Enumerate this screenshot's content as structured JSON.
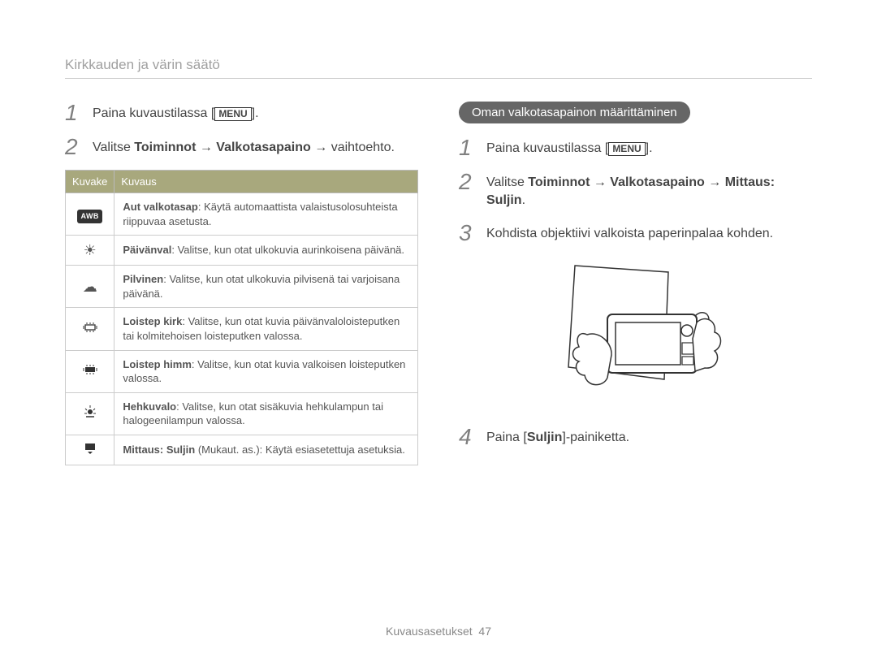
{
  "header": "Kirkkauden ja värin säätö",
  "left": {
    "step1_prefix": "Paina kuvaustilassa [",
    "menu_label": "MENU",
    "step1_suffix": "].",
    "step2_pre": "Valitse ",
    "step2_b1": "Toiminnot",
    "step2_arrow": " → ",
    "step2_b2": "Valkotasapaino",
    "step2_suffix": " → vaihtoehto.",
    "table": {
      "col_icon": "Kuvake",
      "col_desc": "Kuvaus",
      "rows": [
        {
          "icon_html": "<span class='awb-box'>AWB</span>",
          "title": "Aut valkotasap",
          "body": ": Käytä automaattista valaistusolosuhteista riippuvaa asetusta."
        },
        {
          "icon_html": "☀",
          "title": "Päivänval",
          "body": ": Valitse, kun otat ulkokuvia aurinkoisena päivänä."
        },
        {
          "icon_html": "☁",
          "title": "Pilvinen",
          "body": ": Valitse, kun otat ulkokuvia pilvisenä tai varjoisana päivänä."
        },
        {
          "icon_html": "<svg width='20' height='16' viewBox='0 0 20 16'><rect x='4' y='5' width='12' height='6' fill='none' stroke='#333' stroke-width='1.3'/><line x1='2' y1='6' x2='2' y2='10' stroke='#333'/><line x1='18' y1='6' x2='18' y2='10' stroke='#333'/><line x1='6' y1='2' x2='6' y2='4' stroke='#333'/><line x1='10' y1='2' x2='10' y2='4' stroke='#333'/><line x1='14' y1='2' x2='14' y2='4' stroke='#333'/><line x1='6' y1='12' x2='6' y2='14' stroke='#333'/><line x1='10' y1='12' x2='10' y2='14' stroke='#333'/><line x1='14' y1='12' x2='14' y2='14' stroke='#333'/></svg>",
          "title": "Loistep kirk",
          "body": ": Valitse, kun otat kuvia päivänvaloloisteputken tai kolmitehoisen loisteputken valossa."
        },
        {
          "icon_html": "<svg width='20' height='16' viewBox='0 0 20 16'><rect x='4' y='5' width='12' height='6' fill='#333'/><line x1='2' y1='6' x2='2' y2='10' stroke='#333'/><line x1='18' y1='6' x2='18' y2='10' stroke='#333'/><line x1='6' y1='2' x2='6' y2='4' stroke='#333'/><line x1='10' y1='2' x2='10' y2='4' stroke='#333'/><line x1='14' y1='2' x2='14' y2='4' stroke='#333'/><line x1='6' y1='12' x2='6' y2='14' stroke='#333'/><line x1='10' y1='12' x2='10' y2='14' stroke='#333'/><line x1='14' y1='12' x2='14' y2='14' stroke='#333'/></svg>",
          "title": "Loistep himm",
          "body": ": Valitse, kun otat kuvia valkoisen loisteputken valossa."
        },
        {
          "icon_html": "<svg width='20' height='18' viewBox='0 0 20 18'><circle cx='10' cy='10' r='3' fill='#333'/><line x1='10' y1='2' x2='10' y2='5' stroke='#333'/><line x1='4' y1='6' x2='6' y2='8' stroke='#333'/><line x1='16' y1='6' x2='14' y2='8' stroke='#333'/><line x1='3' y1='12' x2='6' y2='12' stroke='#333'/><line x1='14' y1='12' x2='17' y2='12' stroke='#333'/><line x1='5' y1='16' x2='15' y2='16' stroke='#333' stroke-width='1.5'/></svg>",
          "title": "Hehkuvalo",
          "body": ": Valitse, kun otat sisäkuvia hehkulampun tai halogeenilampun valossa."
        },
        {
          "icon_html": "<svg width='18' height='16' viewBox='0 0 18 16'><rect x='3' y='2' width='12' height='8' fill='#333'/><path d='M6 12 L9 15 L12 12' fill='#333'/></svg>",
          "title": "Mittaus: Suljin",
          "body": " (Mukaut. as.): Käytä esiasetettuja asetuksia."
        }
      ]
    }
  },
  "right": {
    "pill": "Oman valkotasapainon määrittäminen",
    "step1_prefix": "Paina kuvaustilassa [",
    "menu_label": "MENU",
    "step1_suffix": "].",
    "step2_pre": "Valitse ",
    "step2_b1": "Toiminnot",
    "step2_arrow": " → ",
    "step2_b2": "Valkotasapaino",
    "step2_arrow2": " → ",
    "step2_b3": "Mittaus: Suljin",
    "step2_suffix": ".",
    "step3": "Kohdista objektiivi valkoista paperinpalaa kohden.",
    "step4_pre": "Paina [",
    "step4_b": "Suljin",
    "step4_suf": "]-painiketta."
  },
  "footer_label": "Kuvausasetukset",
  "footer_page": "47"
}
